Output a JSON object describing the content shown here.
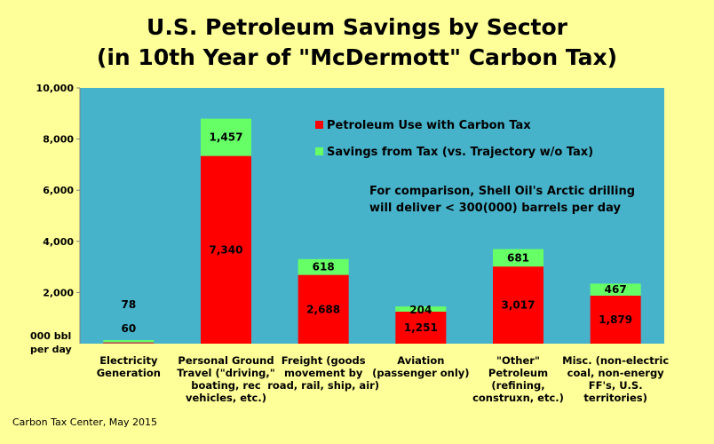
{
  "title_line1": "U.S. Petroleum Savings by Sector",
  "title_line2": "(in 10th Year of \"McDermott\" Carbon Tax)",
  "credit": "Carbon Tax Center, May 2015",
  "annotation_line1": "For comparison, Shell Oil's Arctic drilling",
  "annotation_line2": "will deliver < 300(000) barrels per day",
  "colors": {
    "plot_bg": "#47b3cb",
    "page_bg": "#ffff99",
    "use": "#ff0000",
    "savings": "#66ff66",
    "electric_use": "#c0504d"
  },
  "chart_data": {
    "type": "bar",
    "stacked": true,
    "ylim": [
      0,
      10000
    ],
    "yticks": [
      "0",
      "2,000",
      "4,000",
      "6,000",
      "8,000",
      "10,000"
    ],
    "ytick_values": [
      0,
      2000,
      4000,
      6000,
      8000,
      10000
    ],
    "ylabel_line1": "000 bbl",
    "ylabel_line2": "per day",
    "categories": [
      [
        "Electricity",
        "Generation"
      ],
      [
        "Personal Ground",
        "Travel (\"driving,\"",
        "boating, rec",
        "vehicles, etc.)"
      ],
      [
        "Freight (goods",
        "movement by",
        "road, rail, ship, air)"
      ],
      [
        "Aviation",
        "(passenger only)"
      ],
      [
        "\"Other\"",
        "Petroleum",
        "(refining,",
        "construxn, etc.)"
      ],
      [
        "Misc. (non-electric",
        "coal, non-energy",
        "FF's, U.S.",
        "territories)"
      ]
    ],
    "series": [
      {
        "name": "Petroleum Use with Carbon Tax",
        "values": [
          60,
          7340,
          2688,
          1251,
          3017,
          1879
        ],
        "labels": [
          "60",
          "7,340",
          "2,688",
          "1,251",
          "3,017",
          "1,879"
        ]
      },
      {
        "name": "Savings from Tax (vs. Trajectory w/o Tax)",
        "values": [
          78,
          1457,
          618,
          204,
          681,
          467
        ],
        "labels": [
          "78",
          "1,457",
          "618",
          "204",
          "681",
          "467"
        ]
      }
    ],
    "legend": "top-right",
    "grid": false
  }
}
